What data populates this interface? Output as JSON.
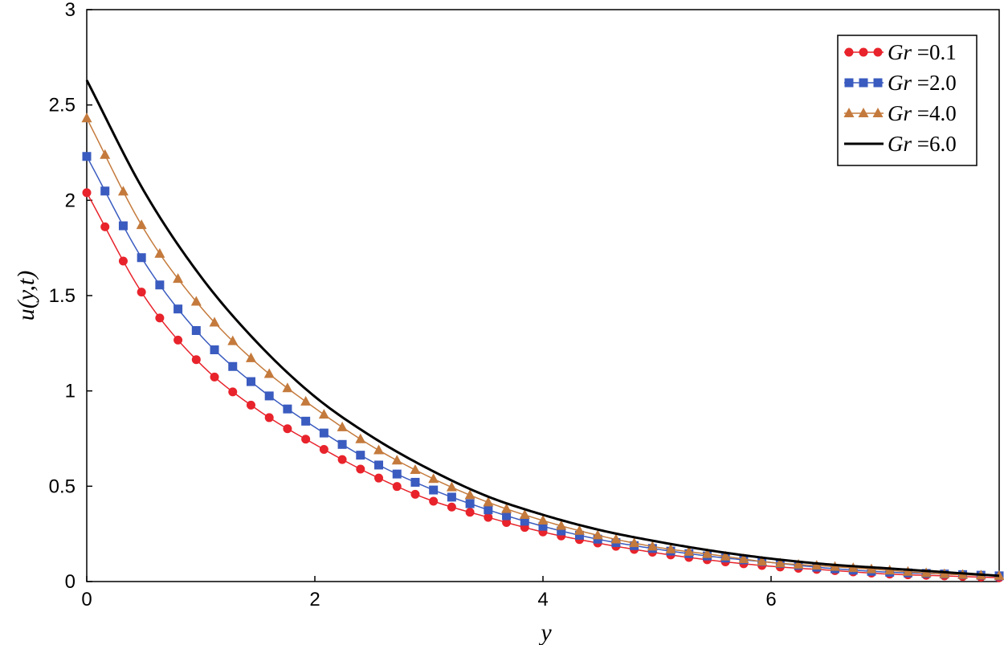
{
  "chart_data": {
    "type": "line",
    "title": "",
    "xlabel": "y",
    "ylabel": "u(y,t)",
    "xlim": [
      0,
      8
    ],
    "ylim": [
      0,
      3
    ],
    "xticks": [
      "0",
      "2",
      "4",
      "6"
    ],
    "yticks": [
      "0",
      "0.5",
      "1",
      "1.5",
      "2",
      "2.5",
      "3"
    ],
    "grid": false,
    "legend_position": "top-right",
    "x": [
      0,
      0.5,
      1,
      1.5,
      2,
      2.5,
      3,
      3.5,
      4,
      4.5,
      5,
      5.5,
      6,
      6.5,
      7,
      7.5,
      8
    ],
    "series": [
      {
        "name": "Gr =0.1",
        "marker": "circle",
        "color": "#e8232b",
        "values": [
          2.04,
          1.5,
          1.14,
          0.9,
          0.72,
          0.56,
          0.43,
          0.34,
          0.26,
          0.2,
          0.15,
          0.11,
          0.08,
          0.06,
          0.04,
          0.03,
          0.02
        ]
      },
      {
        "name": "Gr =2.0",
        "marker": "square",
        "color": "#3a5bbf",
        "values": [
          2.23,
          1.68,
          1.29,
          1.02,
          0.81,
          0.63,
          0.49,
          0.38,
          0.29,
          0.22,
          0.17,
          0.13,
          0.1,
          0.07,
          0.05,
          0.04,
          0.03
        ]
      },
      {
        "name": "Gr =4.0",
        "marker": "triangle",
        "color": "#c47a3c",
        "values": [
          2.43,
          1.85,
          1.44,
          1.14,
          0.91,
          0.71,
          0.55,
          0.42,
          0.32,
          0.24,
          0.18,
          0.14,
          0.1,
          0.08,
          0.06,
          0.04,
          0.03
        ]
      },
      {
        "name": "Gr =6.0",
        "marker": "none",
        "color": "#000000",
        "values": [
          2.63,
          2.05,
          1.6,
          1.25,
          0.97,
          0.76,
          0.59,
          0.45,
          0.35,
          0.27,
          0.21,
          0.16,
          0.12,
          0.09,
          0.07,
          0.05,
          0.03
        ]
      }
    ]
  }
}
